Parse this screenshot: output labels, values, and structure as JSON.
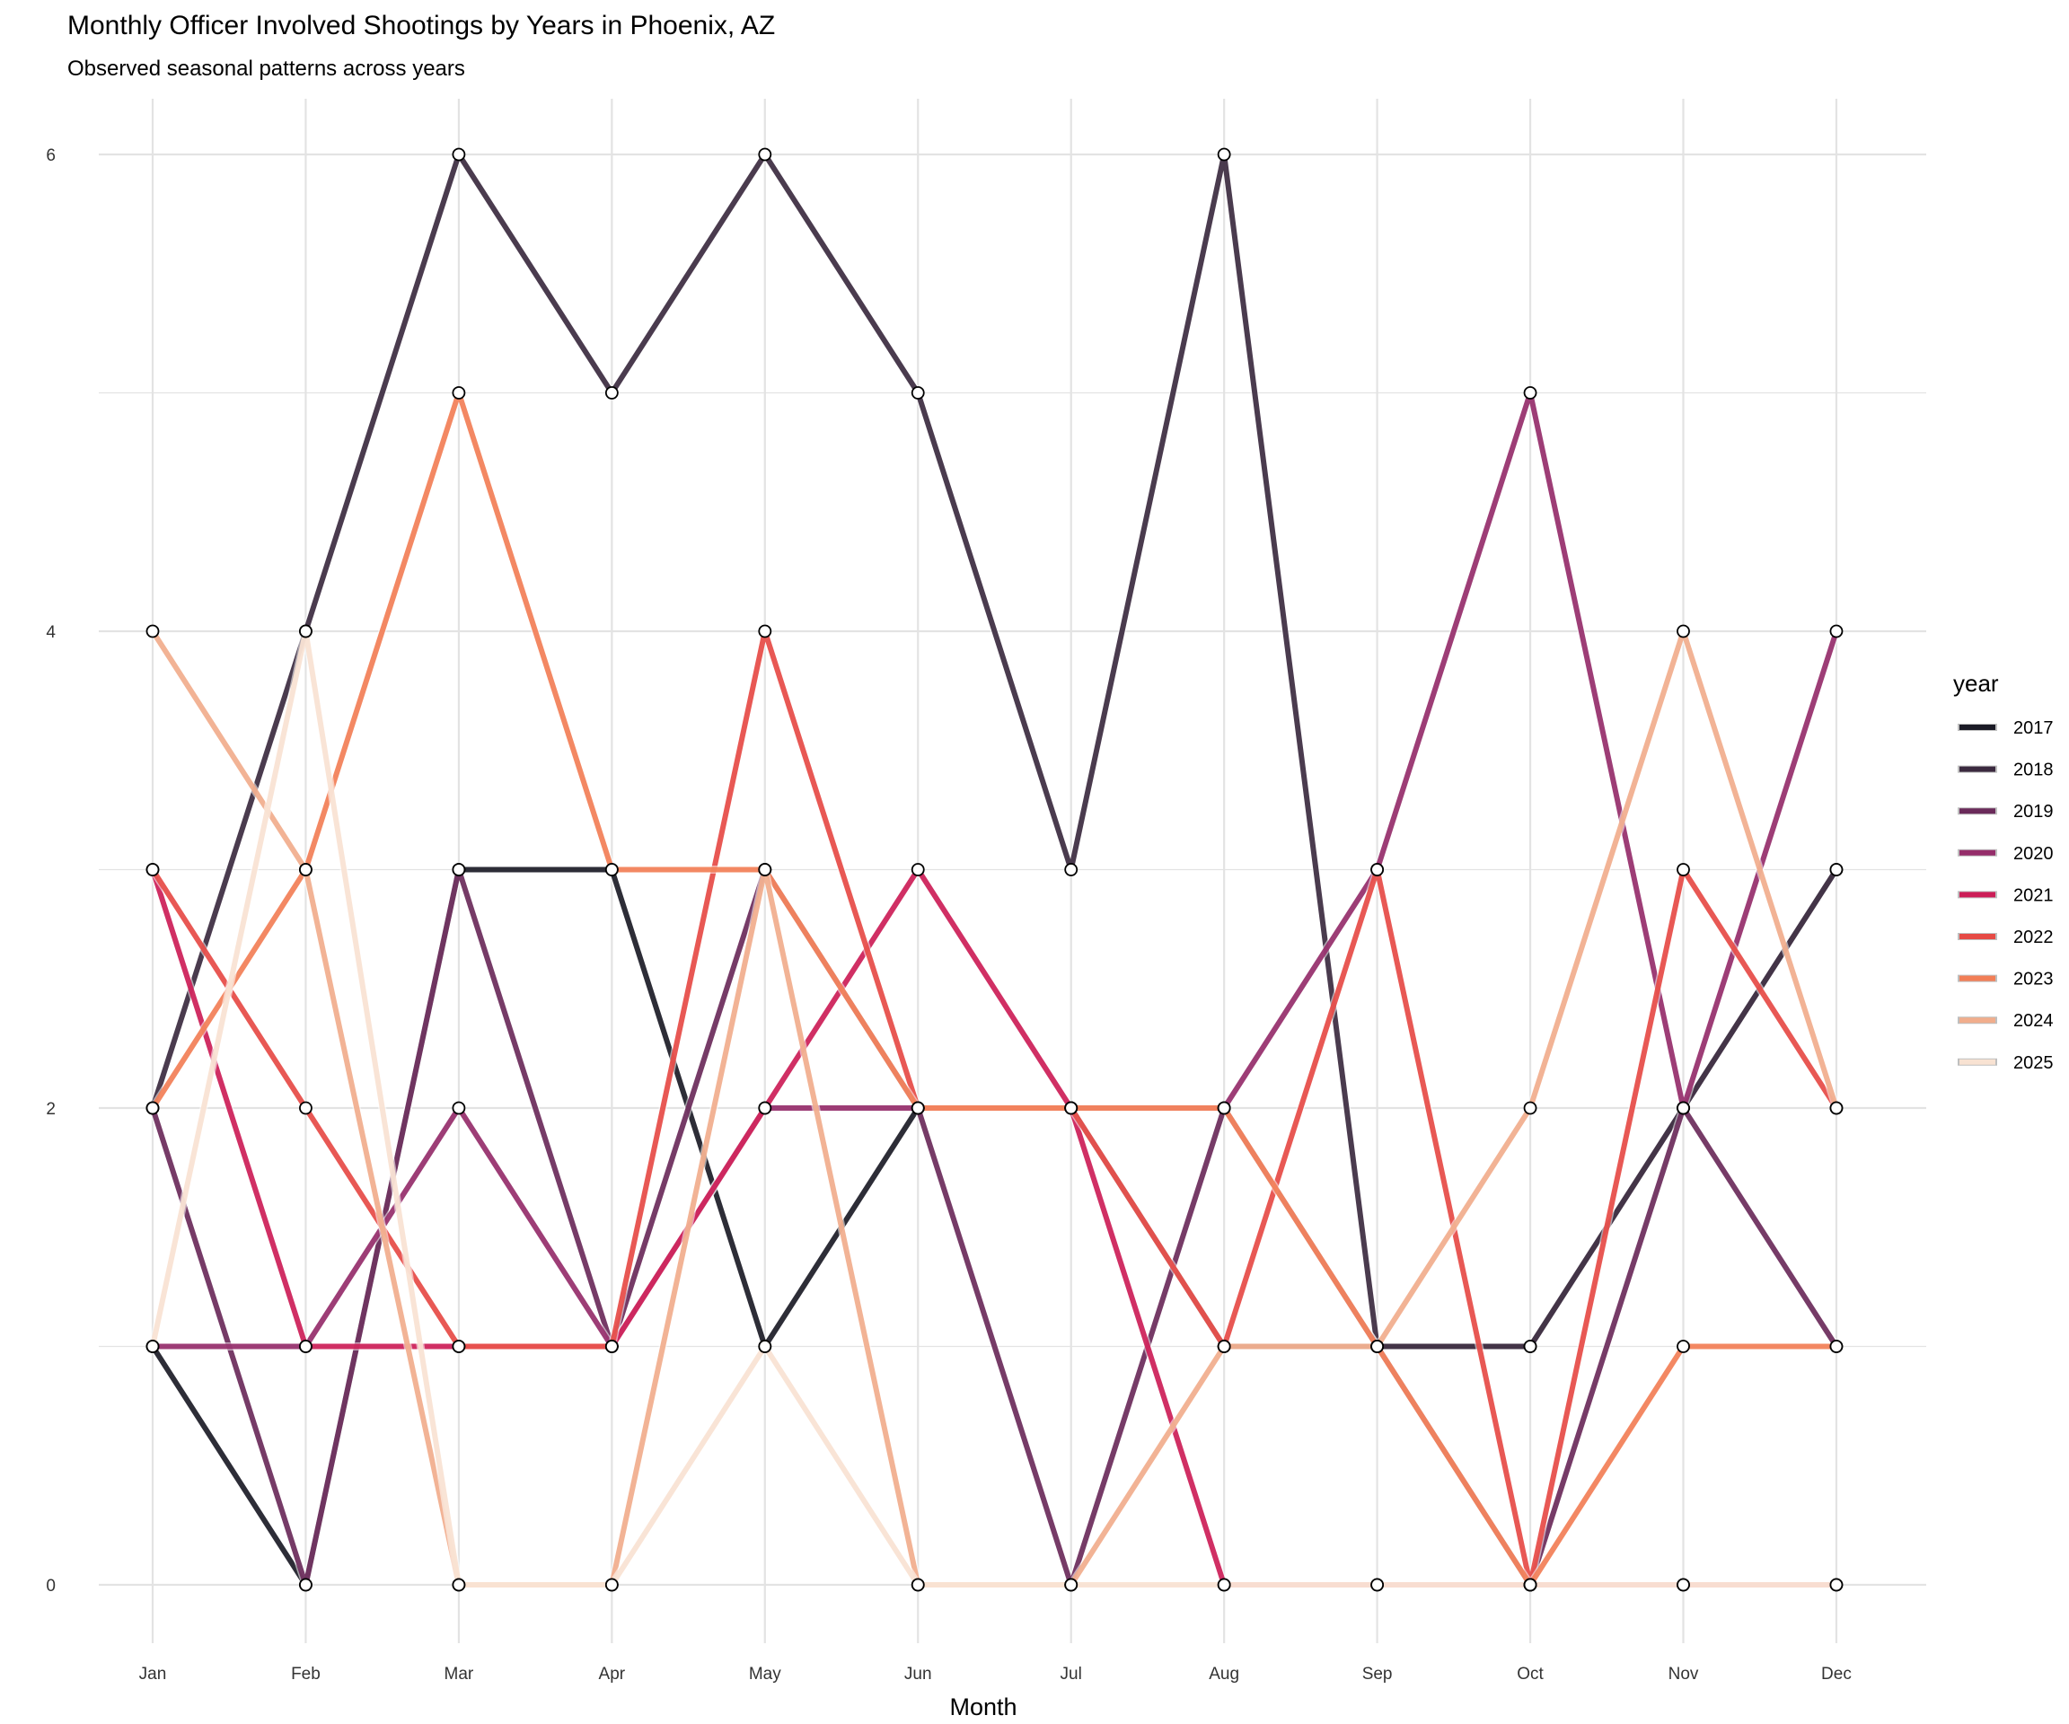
{
  "chart_data": {
    "type": "line",
    "title": "Monthly Officer Involved Shootings by Years in Phoenix, AZ",
    "subtitle": "Observed seasonal patterns across years",
    "xlabel": "Month",
    "ylabel": "",
    "categories": [
      "Jan",
      "Feb",
      "Mar",
      "Apr",
      "May",
      "Jun",
      "Jul",
      "Aug",
      "Sep",
      "Oct",
      "Nov",
      "Dec"
    ],
    "ylim": [
      -0.25,
      6.2
    ],
    "yticks": [
      0,
      2,
      4,
      6
    ],
    "grid": true,
    "legend": {
      "title": "year",
      "position": "right"
    },
    "series": [
      {
        "name": "2017",
        "color": "#1b1b26",
        "values": [
          1,
          0,
          3,
          3,
          1,
          2,
          2,
          1,
          1,
          1,
          2,
          3
        ]
      },
      {
        "name": "2018",
        "color": "#3b2a3f",
        "values": [
          2,
          4,
          6,
          5,
          6,
          5,
          3,
          6,
          1,
          1,
          2,
          3
        ]
      },
      {
        "name": "2019",
        "color": "#6a2a5a",
        "values": [
          2,
          0,
          3,
          1,
          3,
          2,
          0,
          2,
          1,
          0,
          2,
          1
        ]
      },
      {
        "name": "2020",
        "color": "#952d6a",
        "values": [
          1,
          1,
          2,
          1,
          2,
          2,
          2,
          2,
          3,
          5,
          2,
          4
        ]
      },
      {
        "name": "2021",
        "color": "#cc1d57",
        "values": [
          3,
          1,
          1,
          1,
          2,
          3,
          2,
          0,
          0,
          0,
          0,
          0
        ]
      },
      {
        "name": "2022",
        "color": "#e64a45",
        "values": [
          3,
          2,
          1,
          1,
          4,
          2,
          2,
          1,
          3,
          0,
          3,
          2
        ]
      },
      {
        "name": "2023",
        "color": "#f27e56",
        "values": [
          2,
          3,
          5,
          3,
          3,
          2,
          2,
          2,
          1,
          0,
          1,
          1
        ]
      },
      {
        "name": "2024",
        "color": "#f1ad8c",
        "values": [
          4,
          3,
          0,
          0,
          3,
          0,
          0,
          1,
          1,
          2,
          4,
          2
        ]
      },
      {
        "name": "2025",
        "color": "#f8e2d2",
        "values": [
          1,
          4,
          0,
          0,
          1,
          0,
          0,
          0,
          0,
          0,
          0,
          0
        ]
      }
    ]
  }
}
